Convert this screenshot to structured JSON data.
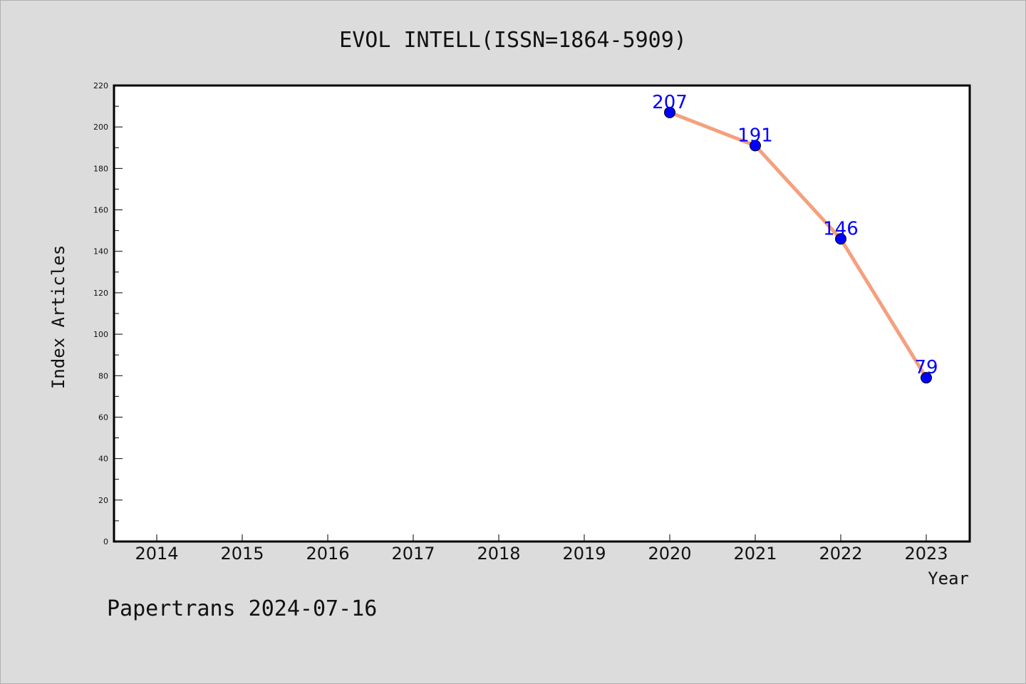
{
  "chart_data": {
    "type": "line",
    "title": "EVOL INTELL(ISSN=1864-5909)",
    "xlabel": "Year",
    "ylabel": "Index Articles",
    "categories": [
      "2014",
      "2015",
      "2016",
      "2017",
      "2018",
      "2019",
      "2020",
      "2021",
      "2022",
      "2023"
    ],
    "yticks": [
      0,
      20,
      40,
      60,
      80,
      100,
      120,
      140,
      160,
      180,
      200,
      220
    ],
    "ylim": [
      0,
      220
    ],
    "series": [
      {
        "x": [
          "2020",
          "2021",
          "2022",
          "2023"
        ],
        "values": [
          207,
          191,
          146,
          79
        ],
        "line_color": "#f4a07e",
        "marker_color": "#0000ff",
        "label_color": "#0000ff"
      }
    ],
    "grid": false
  },
  "footer": {
    "text": "Papertrans 2024-07-16"
  }
}
